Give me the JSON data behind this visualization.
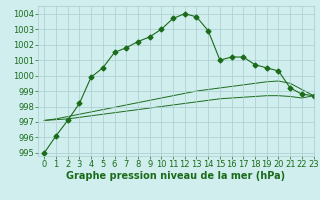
{
  "title": "Graphe pression niveau de la mer (hPa)",
  "x_values": [
    0,
    1,
    2,
    3,
    4,
    5,
    6,
    7,
    8,
    9,
    10,
    11,
    12,
    13,
    14,
    15,
    16,
    17,
    18,
    19,
    20,
    21,
    22,
    23
  ],
  "main_line": [
    995.0,
    996.1,
    997.1,
    998.2,
    999.9,
    1000.5,
    1001.5,
    1001.8,
    1002.2,
    1002.5,
    1003.0,
    1003.7,
    1004.0,
    1003.8,
    1002.9,
    1001.0,
    1001.2,
    1001.2,
    1000.7,
    1000.5,
    1000.3,
    999.2,
    998.8,
    998.7
  ],
  "flat_line1": [
    997.1,
    997.2,
    997.35,
    997.5,
    997.65,
    997.8,
    997.95,
    998.1,
    998.25,
    998.4,
    998.55,
    998.7,
    998.85,
    999.0,
    999.1,
    999.2,
    999.3,
    999.4,
    999.5,
    999.6,
    999.65,
    999.5,
    999.1,
    998.7
  ],
  "flat_line2": [
    997.1,
    997.15,
    997.2,
    997.3,
    997.4,
    997.5,
    997.6,
    997.7,
    997.8,
    997.9,
    998.0,
    998.1,
    998.2,
    998.3,
    998.4,
    998.5,
    998.55,
    998.6,
    998.65,
    998.7,
    998.7,
    998.65,
    998.55,
    998.7
  ],
  "line_color": "#1a6b1a",
  "bg_color": "#d0eeee",
  "grid_color": "#aacccc",
  "ylim": [
    994.8,
    1004.5
  ],
  "yticks": [
    995,
    996,
    997,
    998,
    999,
    1000,
    1001,
    1002,
    1003,
    1004
  ],
  "xlim": [
    -0.5,
    23
  ],
  "xticks": [
    0,
    1,
    2,
    3,
    4,
    5,
    6,
    7,
    8,
    9,
    10,
    11,
    12,
    13,
    14,
    15,
    16,
    17,
    18,
    19,
    20,
    21,
    22,
    23
  ],
  "marker": "D",
  "marker_size": 2.5,
  "font_color": "#1a6b1a",
  "label_fontsize": 7,
  "tick_fontsize": 6
}
